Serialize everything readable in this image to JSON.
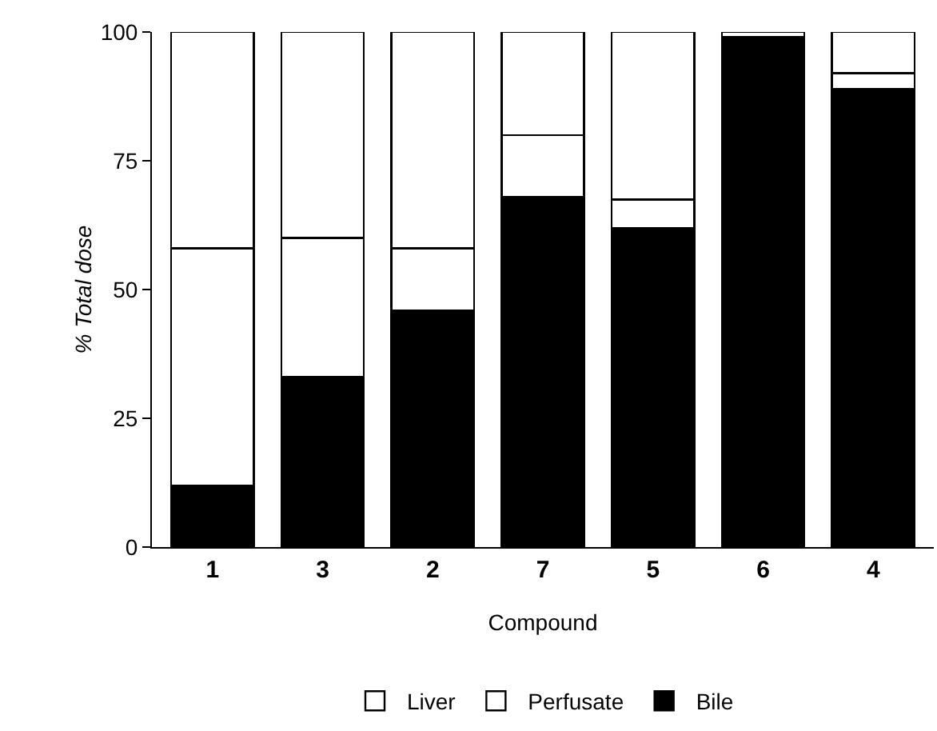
{
  "chart_data": {
    "type": "bar",
    "stacked": true,
    "xlabel": "Compound",
    "ylabel": "% Total dose",
    "categories": [
      "1",
      "3",
      "2",
      "7",
      "5",
      "6",
      "4"
    ],
    "series": [
      {
        "name": "Bile",
        "color": "#000000",
        "values": [
          12,
          33,
          46,
          68,
          62,
          99,
          89
        ]
      },
      {
        "name": "Perfusate",
        "color": "#ffffff",
        "values": [
          46,
          27,
          12,
          12,
          5.5,
          0,
          3
        ]
      },
      {
        "name": "Liver",
        "color": "#ffffff",
        "values": [
          42,
          40,
          42,
          20,
          32.5,
          1,
          8
        ]
      }
    ],
    "ylim": [
      0,
      100
    ],
    "yticks": [
      0,
      25,
      50,
      75,
      100
    ],
    "grid": false,
    "legend": "bottom"
  }
}
